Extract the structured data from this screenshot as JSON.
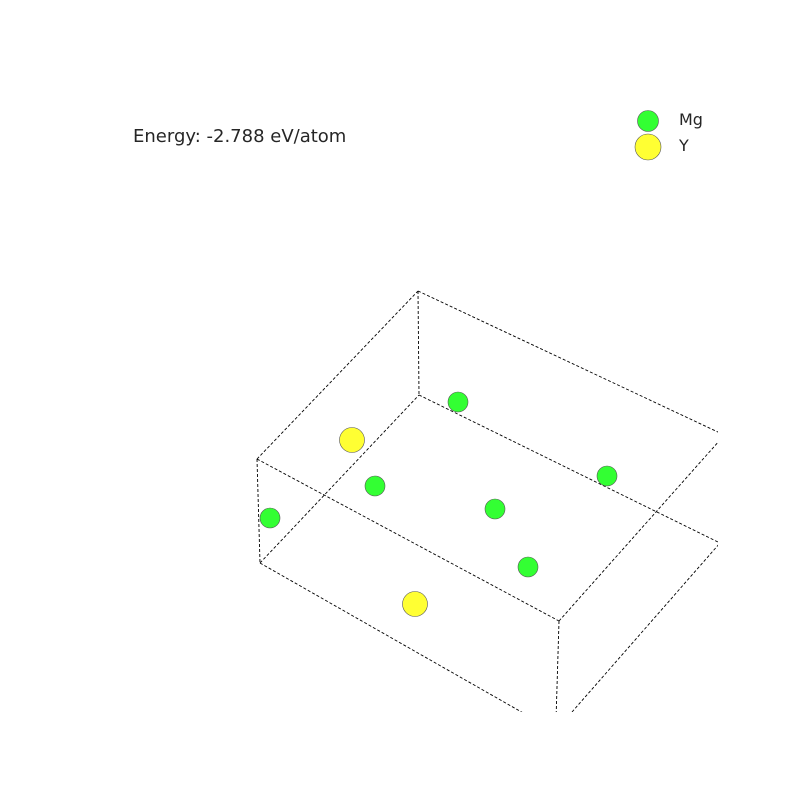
{
  "energy": {
    "text": "Energy: -2.788 eV/atom"
  },
  "legend": [
    {
      "symbol": "Mg",
      "color": "#33ff33"
    },
    {
      "symbol": "Y",
      "color": "#ffff33"
    }
  ],
  "structure": {
    "cell_edges": "dashed black",
    "atoms": [
      {
        "element": "Mg"
      },
      {
        "element": "Y"
      },
      {
        "element": "Mg"
      },
      {
        "element": "Mg"
      },
      {
        "element": "Mg"
      },
      {
        "element": "Mg"
      },
      {
        "element": "Mg"
      },
      {
        "element": "Y"
      }
    ]
  }
}
